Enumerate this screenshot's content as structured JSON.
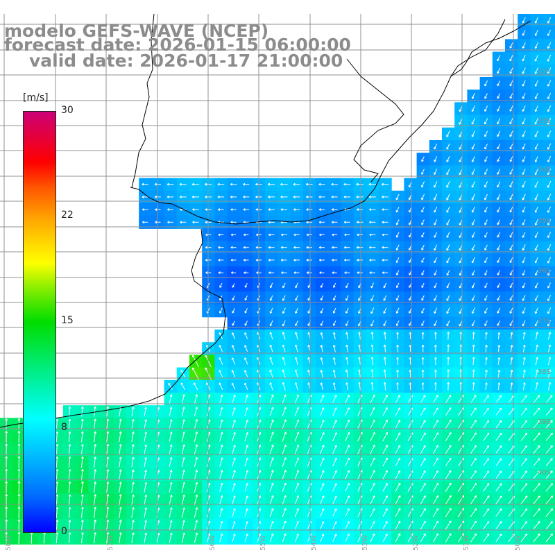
{
  "title": {
    "line1": "modelo GEFS-WAVE (NCEP)",
    "line2": "forecast date: 2026-01-15 06:00:00",
    "line3": "valid date: 2026-01-17 21:00:00"
  },
  "colorbar": {
    "unit": "[m/s]",
    "ticks": [
      "30",
      "22",
      "15",
      "8",
      "0"
    ],
    "tick_values": [
      30,
      22,
      15,
      8,
      0
    ],
    "range": [
      0,
      30
    ]
  },
  "lat_labels": [
    "32S",
    "33S",
    "34S",
    "35S",
    "36S",
    "37S",
    "38S",
    "39S",
    "40S"
  ],
  "lon_labels": [
    "58W",
    "57W",
    "56W",
    "55W",
    "54W",
    "53W",
    "52W",
    "51W",
    "50W"
  ],
  "colors": {
    "land": "#ffffff",
    "coastline": "#000000",
    "grid": "#909090",
    "arrows": "#ffffff"
  }
}
